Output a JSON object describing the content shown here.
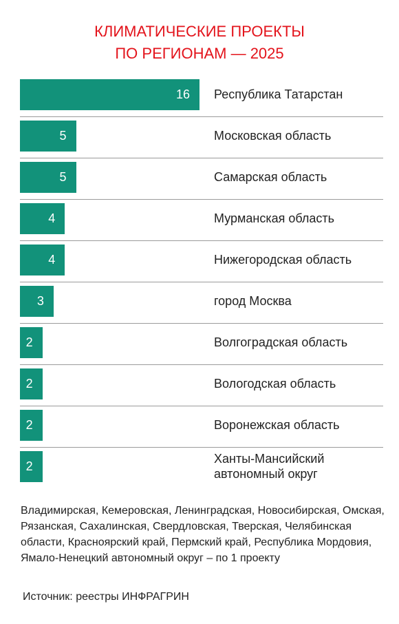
{
  "chart_data": {
    "type": "bar",
    "orientation": "horizontal",
    "title": [
      "КЛИМАТИЧЕСКИЕ ПРОЕКТЫ",
      "ПО РЕГИОНАМ — 2025"
    ],
    "categories": [
      "Республика Татарстан",
      "Московская область",
      "Самарская область",
      "Мурманская область",
      "Нижегородская область",
      "город Москва",
      "Волгоградская область",
      "Вологодская область",
      "Воронежская область",
      "Ханты-Мансийский автономный округ"
    ],
    "values": [
      16,
      5,
      5,
      4,
      4,
      3,
      2,
      2,
      2,
      2
    ],
    "color": "#12927a",
    "note": "Владимирская, Кемеровская, Ленинградская, Новосибирская, Омская, Рязанская, Сахалинская, Свердловская, Тверская, Челябинская области, Красноярский край, Пермский край, Республика Мордовия, Ямало-Ненецкий автономный округ – по 1 проекту",
    "source": "Источник: реестры ИНФРАГРИН"
  }
}
